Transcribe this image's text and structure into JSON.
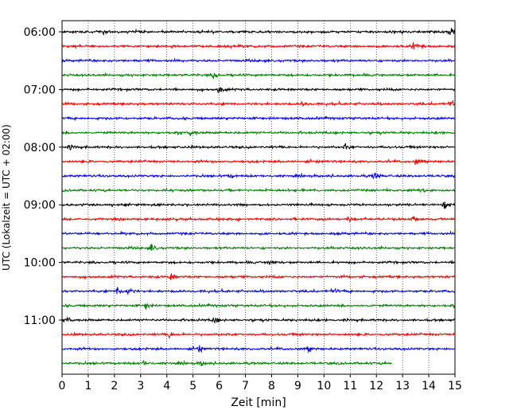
{
  "chart_data": {
    "type": "line",
    "title": "",
    "xlabel": "Zeit  [min]",
    "ylabel": "UTC (Lokalzeit = UTC + 02:00)",
    "xlim": [
      0,
      15
    ],
    "x_ticks": [
      "0",
      "1",
      "2",
      "3",
      "4",
      "5",
      "6",
      "7",
      "8",
      "9",
      "10",
      "11",
      "12",
      "13",
      "14",
      "15"
    ],
    "y_ticks": [
      "06:00",
      "07:00",
      "08:00",
      "09:00",
      "10:00",
      "11:00"
    ],
    "row_interval_min": 15,
    "first_row": "06:00",
    "grid": {
      "x": true,
      "y": false,
      "style": "dotted"
    },
    "row_colors": [
      "#000000",
      "#ff0000",
      "#0000ff",
      "#008000"
    ],
    "rows": [
      {
        "time": "06:00",
        "end_min": 15,
        "events": [
          {
            "t": 1.5,
            "a": 0.6
          },
          {
            "t": 14.8,
            "a": 1.0
          }
        ]
      },
      {
        "time": "06:15",
        "end_min": 15,
        "events": [
          {
            "t": 13.4,
            "a": 0.7
          },
          {
            "t": 13.6,
            "a": 0.6
          }
        ]
      },
      {
        "time": "06:30",
        "end_min": 15,
        "events": []
      },
      {
        "time": "06:45",
        "end_min": 15,
        "events": [
          {
            "t": 5.8,
            "a": 0.8
          }
        ]
      },
      {
        "time": "07:00",
        "end_min": 15,
        "events": [
          {
            "t": 6.0,
            "a": 1.0
          }
        ]
      },
      {
        "time": "07:15",
        "end_min": 15,
        "events": [
          {
            "t": 9.2,
            "a": 0.6
          },
          {
            "t": 14.8,
            "a": 1.0
          }
        ]
      },
      {
        "time": "07:30",
        "end_min": 15,
        "events": []
      },
      {
        "time": "07:45",
        "end_min": 15,
        "events": [
          {
            "t": 4.9,
            "a": 0.7
          }
        ]
      },
      {
        "time": "08:00",
        "end_min": 15,
        "events": [
          {
            "t": 0.3,
            "a": 0.5
          },
          {
            "t": 10.8,
            "a": 0.6
          }
        ]
      },
      {
        "time": "08:15",
        "end_min": 15,
        "events": [
          {
            "t": 13.5,
            "a": 0.8
          }
        ]
      },
      {
        "time": "08:30",
        "end_min": 15,
        "events": [
          {
            "t": 6.4,
            "a": 0.5
          },
          {
            "t": 11.9,
            "a": 0.8
          }
        ]
      },
      {
        "time": "08:45",
        "end_min": 15,
        "events": [
          {
            "t": 13.7,
            "a": 0.8
          }
        ]
      },
      {
        "time": "09:00",
        "end_min": 15,
        "events": [
          {
            "t": 14.6,
            "a": 0.9
          }
        ]
      },
      {
        "time": "09:15",
        "end_min": 15,
        "events": [
          {
            "t": 10.9,
            "a": 0.6
          },
          {
            "t": 13.4,
            "a": 0.6
          }
        ]
      },
      {
        "time": "09:30",
        "end_min": 15,
        "events": []
      },
      {
        "time": "09:45",
        "end_min": 15,
        "events": [
          {
            "t": 3.4,
            "a": 0.8
          }
        ]
      },
      {
        "time": "10:00",
        "end_min": 15,
        "events": [
          {
            "t": 7.9,
            "a": 0.9
          }
        ]
      },
      {
        "time": "10:15",
        "end_min": 15,
        "events": [
          {
            "t": 4.1,
            "a": 1.0
          }
        ]
      },
      {
        "time": "10:30",
        "end_min": 15,
        "events": [
          {
            "t": 2.1,
            "a": 0.8
          },
          {
            "t": 2.5,
            "a": 0.8
          },
          {
            "t": 10.3,
            "a": 0.6
          }
        ]
      },
      {
        "time": "10:45",
        "end_min": 15,
        "events": [
          {
            "t": 3.2,
            "a": 0.8
          }
        ]
      },
      {
        "time": "11:00",
        "end_min": 15,
        "events": [
          {
            "t": 0.2,
            "a": 0.5
          },
          {
            "t": 5.8,
            "a": 0.8
          }
        ]
      },
      {
        "time": "11:15",
        "end_min": 15,
        "events": [
          {
            "t": 4.1,
            "a": 0.7
          }
        ]
      },
      {
        "time": "11:30",
        "end_min": 15,
        "events": [
          {
            "t": 5.2,
            "a": 0.8
          },
          {
            "t": 9.4,
            "a": 0.5
          }
        ]
      },
      {
        "time": "11:45",
        "end_min": 12.6,
        "events": [
          {
            "t": 3.1,
            "a": 0.6
          },
          {
            "t": 5.3,
            "a": 0.5
          }
        ]
      }
    ]
  }
}
